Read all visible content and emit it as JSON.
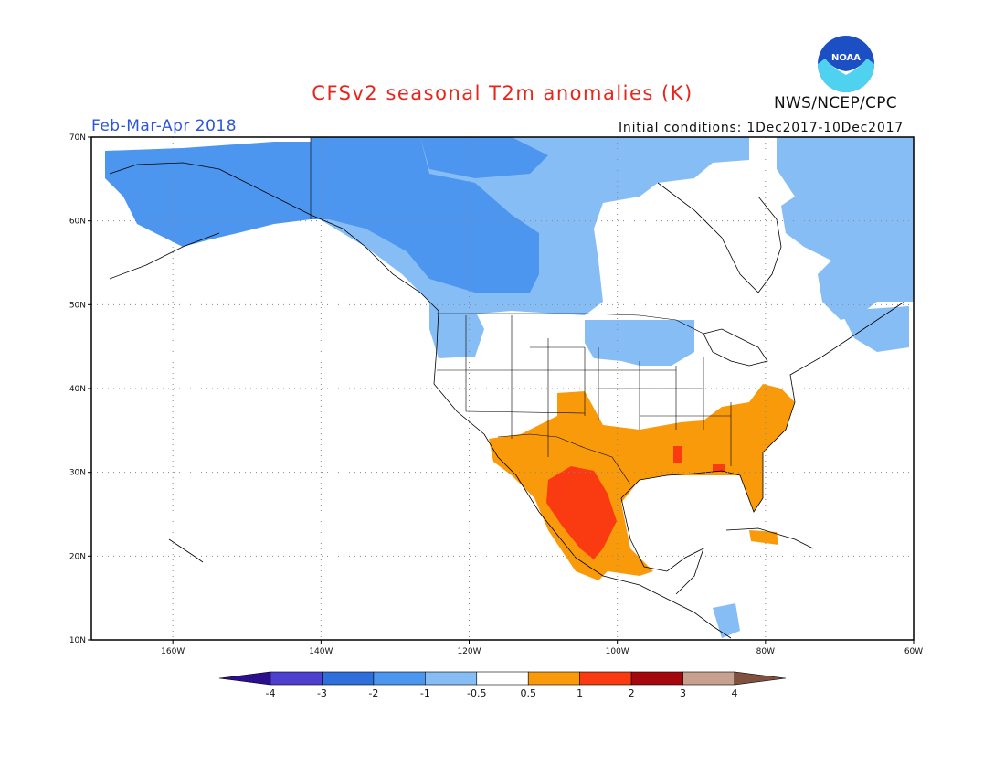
{
  "title": "CFSv2 seasonal T2m anomalies (K)",
  "season": "Feb-Mar-Apr 2018",
  "initial_conditions": "Initial conditions: 1Dec2017-10Dec2017",
  "agency": "NWS/NCEP/CPC",
  "logo_text": "NOAA",
  "map": {
    "lon_range": [
      -171,
      -60
    ],
    "lat_range": [
      10,
      70
    ],
    "lat_ticks": [
      {
        "value": 70,
        "label": "70N"
      },
      {
        "value": 60,
        "label": "60N"
      },
      {
        "value": 50,
        "label": "50N"
      },
      {
        "value": 40,
        "label": "40N"
      },
      {
        "value": 30,
        "label": "30N"
      },
      {
        "value": 20,
        "label": "20N"
      },
      {
        "value": 10,
        "label": "10N"
      }
    ],
    "lon_ticks": [
      {
        "value": -160,
        "label": "160W"
      },
      {
        "value": -140,
        "label": "140W"
      },
      {
        "value": -120,
        "label": "120W"
      },
      {
        "value": -100,
        "label": "100W"
      },
      {
        "value": -80,
        "label": "80W"
      },
      {
        "value": -60,
        "label": "60W"
      }
    ],
    "grid": "dotted"
  },
  "colorbar": {
    "labels": [
      "-4",
      "-3",
      "-2",
      "-1",
      "-0.5",
      "0.5",
      "1",
      "2",
      "3",
      "4"
    ],
    "colors": [
      "#2b0f8c",
      "#4d3fd0",
      "#2f6fdc",
      "#4c96ef",
      "#87bdf5",
      "#ffffff",
      "#f99a0a",
      "#fa3a10",
      "#a5080c",
      "#c8a08f",
      "#80513f"
    ]
  },
  "anomaly_regions": [
    {
      "name": "Alaska and northwestern Canada",
      "color": "#4c96ef"
    },
    {
      "name": "Arctic and northeastern Canada",
      "color": "#87bdf5"
    },
    {
      "name": "Southern US and Mexico",
      "color": "#f99a0a"
    },
    {
      "name": "Northern Mexico core",
      "color": "#fa3a10"
    }
  ]
}
